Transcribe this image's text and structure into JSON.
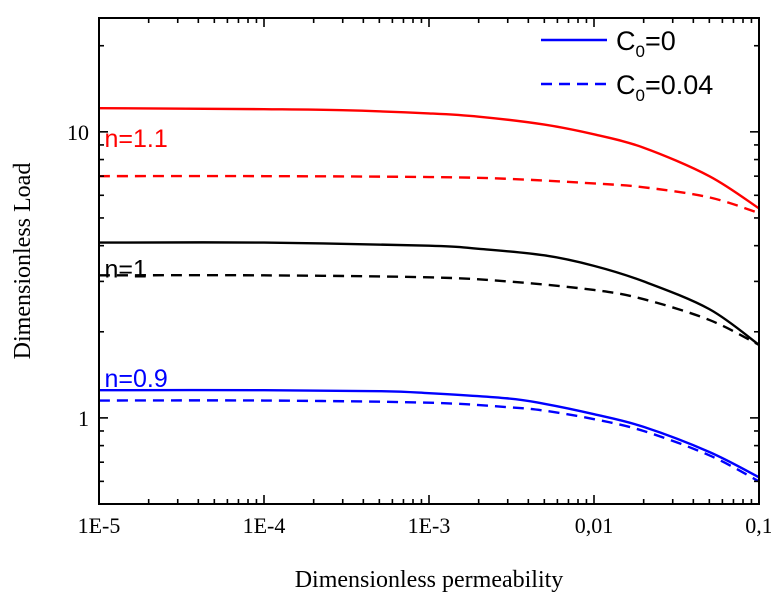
{
  "chart_data": {
    "type": "line",
    "xlabel": "Dimensionless permeability",
    "ylabel": "Dimensionless Load",
    "x_scale": "log",
    "y_scale": "log",
    "xlim": [
      1e-05,
      0.1
    ],
    "ylim": [
      0.5,
      25
    ],
    "x_ticks": [
      {
        "value": 1e-05,
        "label": "1E-5"
      },
      {
        "value": 0.0001,
        "label": "1E-4"
      },
      {
        "value": 0.001,
        "label": "1E-3"
      },
      {
        "value": 0.01,
        "label": "0,01"
      },
      {
        "value": 0.1,
        "label": "0,1"
      }
    ],
    "y_ticks": [
      {
        "value": 1,
        "label": "1"
      },
      {
        "value": 10,
        "label": "10"
      }
    ],
    "grid": false,
    "legend_position": "top-right",
    "legend": [
      {
        "label_main": "C",
        "label_sub": "0",
        "label_rest": "=0",
        "style": "solid",
        "color": "#0000ff"
      },
      {
        "label_main": "C",
        "label_sub": "0",
        "label_rest": "=0.04",
        "style": "dashed",
        "color": "#0000ff"
      }
    ],
    "annotations": [
      {
        "text": "n=1.1",
        "color": "#ff0000",
        "x": 1.05e-05,
        "y": 8.85
      },
      {
        "text": "n=1",
        "color": "#000000",
        "x": 1.05e-05,
        "y": 3.1
      },
      {
        "text": "n=0.9",
        "color": "#0000ff",
        "x": 1.05e-05,
        "y": 1.28
      }
    ],
    "series": [
      {
        "n": "1.1",
        "c0": "0",
        "style": "solid",
        "color": "#ff0000",
        "x": [
          1e-05,
          0.0001,
          0.0003,
          0.001,
          0.002,
          0.005,
          0.01,
          0.02,
          0.05,
          0.1
        ],
        "y": [
          12.1,
          12.0,
          11.9,
          11.6,
          11.3,
          10.6,
          9.8,
          8.8,
          7.0,
          5.4
        ]
      },
      {
        "n": "1.1",
        "c0": "0.04",
        "style": "dashed",
        "color": "#ff0000",
        "x": [
          1e-05,
          0.0001,
          0.001,
          0.003,
          0.01,
          0.02,
          0.05,
          0.1
        ],
        "y": [
          7.0,
          7.0,
          6.95,
          6.85,
          6.6,
          6.4,
          5.9,
          5.2
        ]
      },
      {
        "n": "1",
        "c0": "0",
        "style": "solid",
        "color": "#000000",
        "x": [
          1e-05,
          0.0001,
          0.001,
          0.002,
          0.005,
          0.01,
          0.02,
          0.05,
          0.1
        ],
        "y": [
          4.1,
          4.1,
          4.0,
          3.9,
          3.7,
          3.4,
          3.0,
          2.4,
          1.8
        ]
      },
      {
        "n": "1",
        "c0": "0.04",
        "style": "dashed",
        "color": "#000000",
        "x": [
          1e-05,
          0.0001,
          0.001,
          0.003,
          0.01,
          0.02,
          0.05,
          0.1
        ],
        "y": [
          3.15,
          3.15,
          3.1,
          3.0,
          2.8,
          2.6,
          2.2,
          1.8
        ]
      },
      {
        "n": "0.9",
        "c0": "0",
        "style": "solid",
        "color": "#0000ff",
        "x": [
          1e-05,
          0.0001,
          0.0005,
          0.001,
          0.003,
          0.005,
          0.01,
          0.02,
          0.05,
          0.1
        ],
        "y": [
          1.25,
          1.25,
          1.24,
          1.22,
          1.17,
          1.12,
          1.03,
          0.93,
          0.76,
          0.62
        ]
      },
      {
        "n": "0.9",
        "c0": "0.04",
        "style": "dashed",
        "color": "#0000ff",
        "x": [
          1e-05,
          0.0001,
          0.001,
          0.003,
          0.005,
          0.01,
          0.02,
          0.05,
          0.1
        ],
        "y": [
          1.15,
          1.15,
          1.13,
          1.09,
          1.06,
          0.99,
          0.9,
          0.74,
          0.6
        ]
      }
    ]
  }
}
